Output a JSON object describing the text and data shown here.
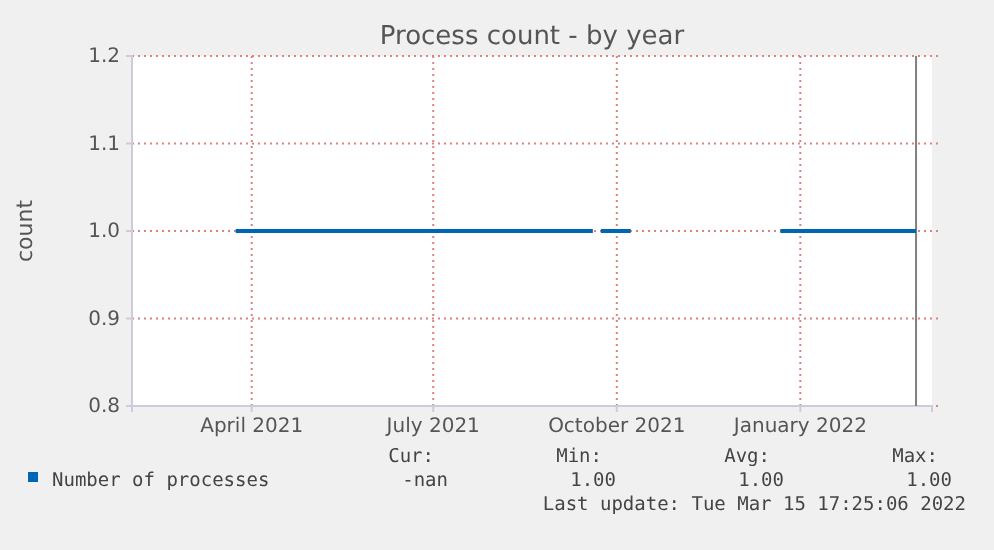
{
  "chart_data": {
    "type": "line",
    "title": "Process count - by year",
    "ylabel": "count",
    "xlim": [
      "2021-01-31",
      "2022-03-08"
    ],
    "xticks": [
      {
        "value": "2021-04-01",
        "label": "April 2021"
      },
      {
        "value": "2021-07-01",
        "label": "July 2021"
      },
      {
        "value": "2021-10-01",
        "label": "October 2021"
      },
      {
        "value": "2022-01-01",
        "label": "January 2022"
      }
    ],
    "ylim": [
      0.8,
      1.2
    ],
    "yticks": [
      0.8,
      0.9,
      {
        "value": 1,
        "label": "1.0"
      },
      1.1,
      1.2
    ],
    "grid": true,
    "legend": "bottom",
    "marker": "none",
    "line_style": "solid",
    "series": [
      {
        "name": "Number of processes",
        "color": "#0066b3",
        "x": [
          "2021-03-24",
          "2021-09-19",
          "2021-09-21",
          "2021-09-23",
          "2021-10-08",
          "2021-10-10",
          "2021-12-22",
          "2022-02-28"
        ],
        "values": [
          1,
          1,
          null,
          1,
          1,
          null,
          1,
          1
        ]
      }
    ],
    "ref_lines": [
      {
        "axis": "x",
        "value": "2022-02-28",
        "color": "#808080"
      }
    ],
    "annotations": [
      "Cur:",
      "Min:",
      "Avg:",
      "Max:",
      "-nan",
      "1.00",
      "1.00",
      "1.00",
      "Last update: Tue Mar 15 17:25:06 2022"
    ]
  }
}
